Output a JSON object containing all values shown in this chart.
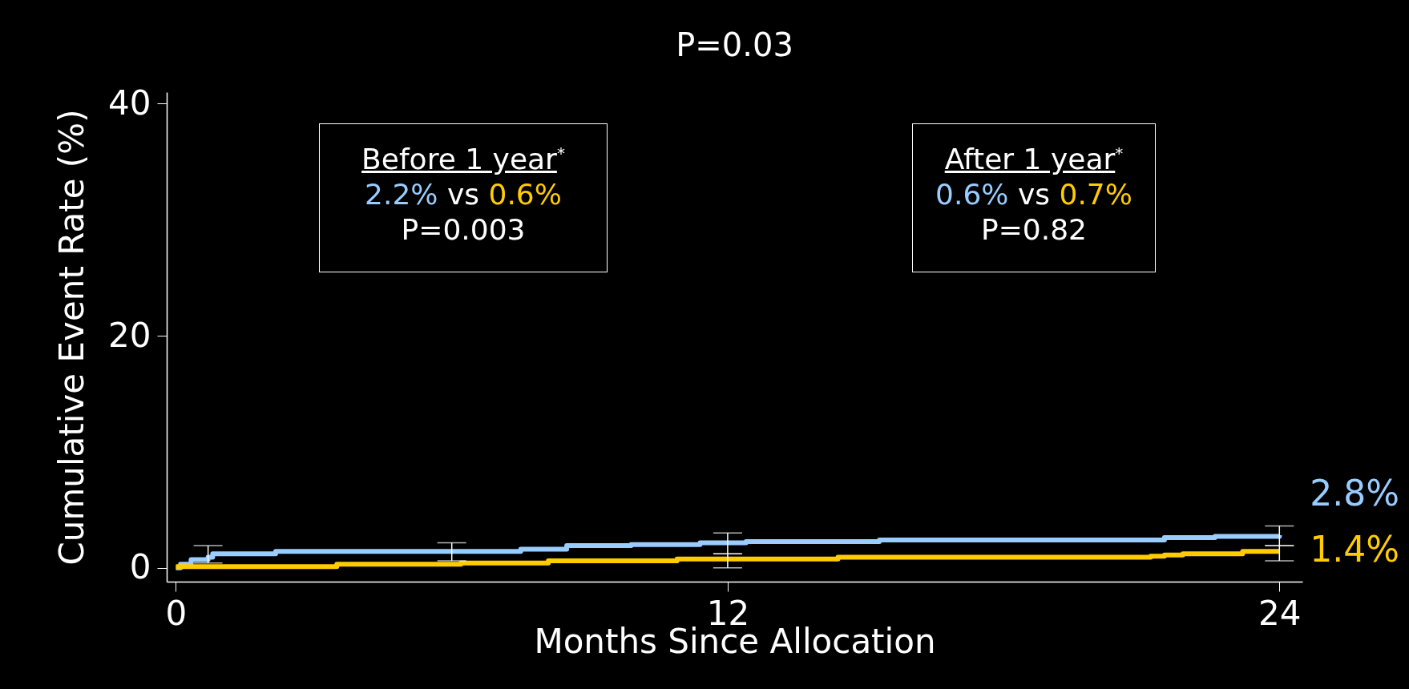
{
  "chart_data": {
    "type": "step",
    "title": "P=0.03",
    "xlabel": "Months Since Allocation",
    "ylabel": "Cumulative Event Rate (%)",
    "xlim": [
      -0.2,
      24.5
    ],
    "xticks": [
      0,
      12,
      24
    ],
    "ylim": [
      -1.2,
      41
    ],
    "yticks": [
      0,
      20,
      40
    ],
    "grid": false,
    "legend": false,
    "marker": "none",
    "line_style": "solid",
    "series": [
      {
        "color": "#99ccff",
        "x": [
          0,
          0.1,
          0.33,
          0.7,
          0.8,
          2.17,
          6,
          7.5,
          8.5,
          9.9,
          11.4,
          12,
          12.4,
          15.3,
          21.5,
          22.6,
          24
        ],
        "values": [
          0,
          0.3,
          0.7,
          0.9,
          1.2,
          1.4,
          1.4,
          1.6,
          1.9,
          2.0,
          2.15,
          2.15,
          2.25,
          2.4,
          2.6,
          2.7,
          2.8
        ],
        "errors": [
          null,
          null,
          null,
          [
            0.4,
            1.9
          ],
          null,
          null,
          [
            0.6,
            2.15
          ],
          null,
          null,
          null,
          null,
          [
            1.2,
            3.0
          ],
          null,
          null,
          null,
          null,
          [
            1.9,
            3.6
          ]
        ],
        "value_labels": [
          null,
          null,
          null,
          null,
          null,
          null,
          null,
          null,
          null,
          null,
          null,
          null,
          null,
          null,
          null,
          null,
          "2.8%"
        ]
      },
      {
        "color": "#ffcc00",
        "x": [
          0,
          3.5,
          6.2,
          8.1,
          10.9,
          12,
          14.4,
          21.2,
          21.5,
          21.9,
          23.2,
          24
        ],
        "values": [
          0.1,
          0.3,
          0.4,
          0.6,
          0.75,
          0.75,
          0.9,
          1.0,
          1.1,
          1.2,
          1.4,
          1.4
        ],
        "errors": [
          null,
          null,
          null,
          null,
          null,
          [
            0,
            1.2
          ],
          null,
          null,
          null,
          null,
          null,
          [
            0.6,
            1.9
          ]
        ],
        "value_labels": [
          null,
          null,
          null,
          null,
          null,
          null,
          null,
          null,
          null,
          null,
          null,
          "1.4%"
        ]
      }
    ],
    "annotations": [
      "Before 1 year$^{*}$\n2.2% vs 0.6%\nP=0.003",
      "After 1 year$^{*}$\n0.6% vs 0.7%\nP=0.82"
    ]
  }
}
